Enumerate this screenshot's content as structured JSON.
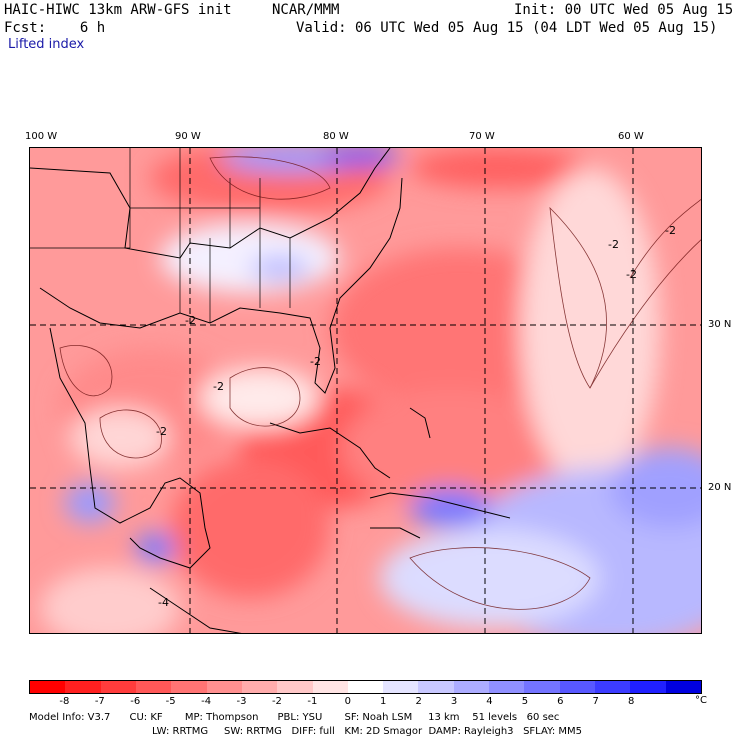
{
  "header": {
    "model": "HAIC-HIWC 13km ARW-GFS init",
    "center": "NCAR/MMM",
    "init": "Init: 00 UTC Wed 05 Aug 15",
    "fcst": "Fcst:    6 h",
    "valid": "Valid: 06 UTC Wed 05 Aug 15 (04 LDT Wed 05 Aug 15)",
    "field": "Lifted index"
  },
  "axes": {
    "lon_labels": [
      "100 W",
      "90 W",
      "80 W",
      "70 W",
      "60 W"
    ],
    "lat_labels": [
      "30 N",
      "20 N"
    ]
  },
  "contour_labels": [
    "-2",
    "-2",
    "-2",
    "-2",
    "-2",
    "-2",
    "-2",
    "-4"
  ],
  "colorbar": {
    "unit": "°C",
    "ticks": [
      "-8",
      "-7",
      "-6",
      "-5",
      "-4",
      "-3",
      "-2",
      "-1",
      "0",
      "1",
      "2",
      "3",
      "4",
      "5",
      "6",
      "7",
      "8"
    ],
    "colors": [
      "#ff0000",
      "#ff2020",
      "#ff3c3c",
      "#ff5858",
      "#ff7474",
      "#ff9090",
      "#ffacac",
      "#ffc8c8",
      "#ffe4e4",
      "#ffffff",
      "#e4e4ff",
      "#c8c8ff",
      "#acacff",
      "#9090ff",
      "#7474ff",
      "#5858ff",
      "#3c3cff",
      "#2020ff",
      "#0000e0"
    ]
  },
  "footer": {
    "line1": "Model Info: V3.7      CU: KF       MP: Thompson      PBL: YSU       SF: Noah LSM     13 km    51 levels   60 sec",
    "line2": "LW: RRTMG     SW: RRTMG   DIFF: full   KM: 2D Smagor  DAMP: Rayleigh3   SFLAY: MM5"
  }
}
